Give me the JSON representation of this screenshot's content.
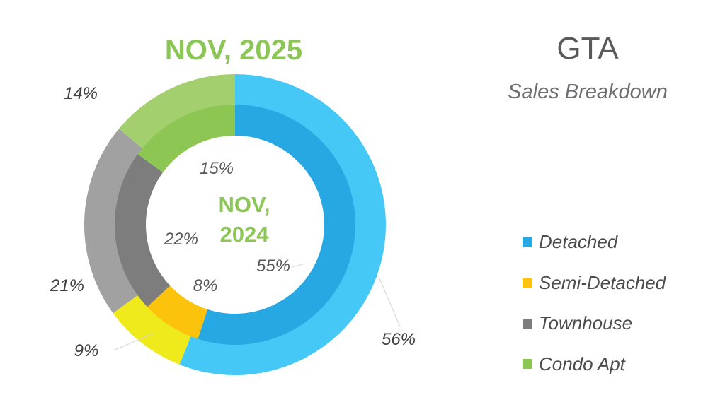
{
  "title": "GTA",
  "subtitle": "Sales Breakdown",
  "chart_data": {
    "type": "pie",
    "categories": [
      "Detached",
      "Semi-Detached",
      "Townhouse",
      "Condo Apt"
    ],
    "series": [
      {
        "ring": "outer",
        "period_label": "NOV, 2025",
        "values": [
          56,
          9,
          21,
          14
        ],
        "labels": [
          "56%",
          "9%",
          "21%",
          "14%"
        ]
      },
      {
        "ring": "inner",
        "period_label": "NOV, 2024",
        "values": [
          55,
          8,
          22,
          15
        ],
        "labels": [
          "55%",
          "8%",
          "22%",
          "15%"
        ]
      }
    ],
    "colors": {
      "outer": [
        "#45c8f5",
        "#eeea1c",
        "#a1a1a2",
        "#a4cf6e"
      ],
      "inner": [
        "#28a8e2",
        "#fcc30c",
        "#7d7d7e",
        "#8dc653"
      ]
    },
    "legend": "right",
    "label_color": "#58595b",
    "period_color": "#8cc656"
  }
}
